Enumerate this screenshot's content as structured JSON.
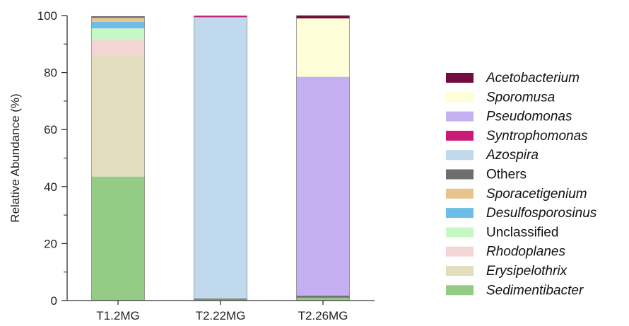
{
  "chart_data": {
    "type": "bar",
    "stacked": true,
    "categories": [
      "T1.2MG",
      "T2.22MG",
      "T2.26MG"
    ],
    "ylabel": "Relative Abundance (%)",
    "xlabel": "",
    "ylim": [
      0,
      100
    ],
    "yticks": [
      0,
      20,
      40,
      60,
      80,
      100
    ],
    "legend_position": "right",
    "series": [
      {
        "name": "Sedimentibacter",
        "italic": true,
        "color": "#95cc85",
        "values": [
          43.5,
          0.3,
          1.0
        ]
      },
      {
        "name": "Erysipelothrix",
        "italic": true,
        "color": "#e2ddbc",
        "values": [
          42.5,
          0.0,
          0.0
        ]
      },
      {
        "name": "Rhodoplanes",
        "italic": true,
        "color": "#f3d5d6",
        "values": [
          5.5,
          0.0,
          0.0
        ]
      },
      {
        "name": "Unclassified",
        "italic": false,
        "color": "#c6f8c6",
        "values": [
          4.0,
          0.0,
          0.0
        ]
      },
      {
        "name": "Desulfosporosinus",
        "italic": true,
        "color": "#6dbde8",
        "values": [
          2.3,
          0.0,
          0.0
        ]
      },
      {
        "name": "Sporacetigenium",
        "italic": true,
        "color": "#e8c48d",
        "values": [
          1.4,
          0.0,
          0.0
        ]
      },
      {
        "name": "Others",
        "italic": false,
        "color": "#6e6e6e",
        "values": [
          0.5,
          0.4,
          0.7
        ]
      },
      {
        "name": "Azospira",
        "italic": true,
        "color": "#c0d9ec",
        "values": [
          0.0,
          98.7,
          0.0
        ]
      },
      {
        "name": "Syntrophomonas",
        "italic": true,
        "color": "#c71b74",
        "values": [
          0.0,
          0.5,
          0.0
        ]
      },
      {
        "name": "Pseudomonas",
        "italic": true,
        "color": "#c4b0f0",
        "values": [
          0.0,
          0.0,
          76.8
        ]
      },
      {
        "name": "Sporomusa",
        "italic": true,
        "color": "#fefed8",
        "values": [
          0.0,
          0.0,
          20.5
        ]
      },
      {
        "name": "Acetobacterium",
        "italic": true,
        "color": "#720c3c",
        "values": [
          0.0,
          0.0,
          1.0
        ]
      }
    ]
  }
}
